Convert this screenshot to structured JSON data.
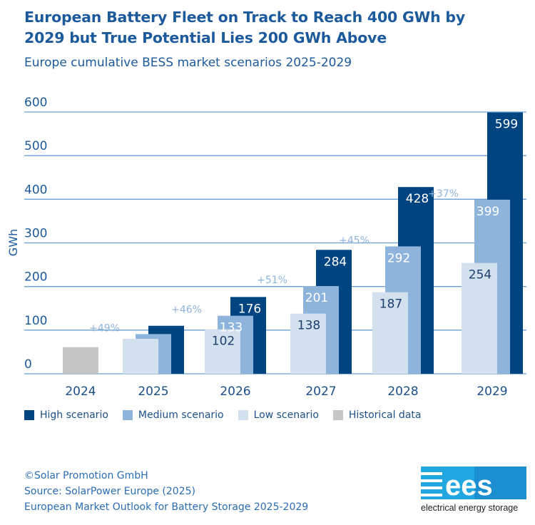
{
  "chart_data": {
    "type": "bar",
    "title": "European Battery Fleet on Track to Reach 400 GWh by 2029 but True Potential Lies 200 GWh Above",
    "subtitle": "Europe cumulative BESS market scenarios 2025-2029",
    "ylabel": "GWh",
    "ylim": [
      0,
      600
    ],
    "yticks": [
      "0",
      "100",
      "200",
      "300",
      "400",
      "500",
      "600"
    ],
    "grid": true,
    "legend_position": "bottom",
    "categories": [
      "2024",
      "2025",
      "2026",
      "2027",
      "2028",
      "2029"
    ],
    "series": [
      {
        "name": "Historical data",
        "color": "#c6c6c6",
        "values": [
          61,
          null,
          null,
          null,
          null,
          null
        ],
        "labels": [
          "",
          "",
          "",
          "",
          "",
          ""
        ]
      },
      {
        "name": "Low scenario",
        "color": "#d3e0ee",
        "values": [
          null,
          80,
          102,
          138,
          187,
          254
        ],
        "labels": [
          "",
          "",
          "102",
          "138",
          "187",
          "254"
        ]
      },
      {
        "name": "Medium scenario",
        "color": "#8fb4dc",
        "values": [
          null,
          91,
          133,
          201,
          292,
          399
        ],
        "labels": [
          "",
          "",
          "133",
          "201",
          "292",
          "399"
        ]
      },
      {
        "name": "High scenario",
        "color": "#004481",
        "values": [
          null,
          110,
          176,
          284,
          428,
          599
        ],
        "labels": [
          "",
          "",
          "176",
          "284",
          "428",
          "599"
        ]
      }
    ],
    "growth_annotations": [
      "+49%",
      "+46%",
      "+51%",
      "+45%",
      "+37%"
    ]
  },
  "legend": [
    {
      "label": "High scenario",
      "color": "#004481"
    },
    {
      "label": "Medium scenario",
      "color": "#8fb4dc"
    },
    {
      "label": "Low scenario",
      "color": "#d3e0ee"
    },
    {
      "label": "Historical data",
      "color": "#c6c6c6"
    }
  ],
  "footer": {
    "copyright": "©Solar Promotion GmbH",
    "source": "Source: SolarPower Europe (2025)",
    "report": "European Market Outlook for Battery Storage 2025-2029"
  },
  "logo": {
    "mark": "ees",
    "tagline": "electrical energy storage"
  }
}
